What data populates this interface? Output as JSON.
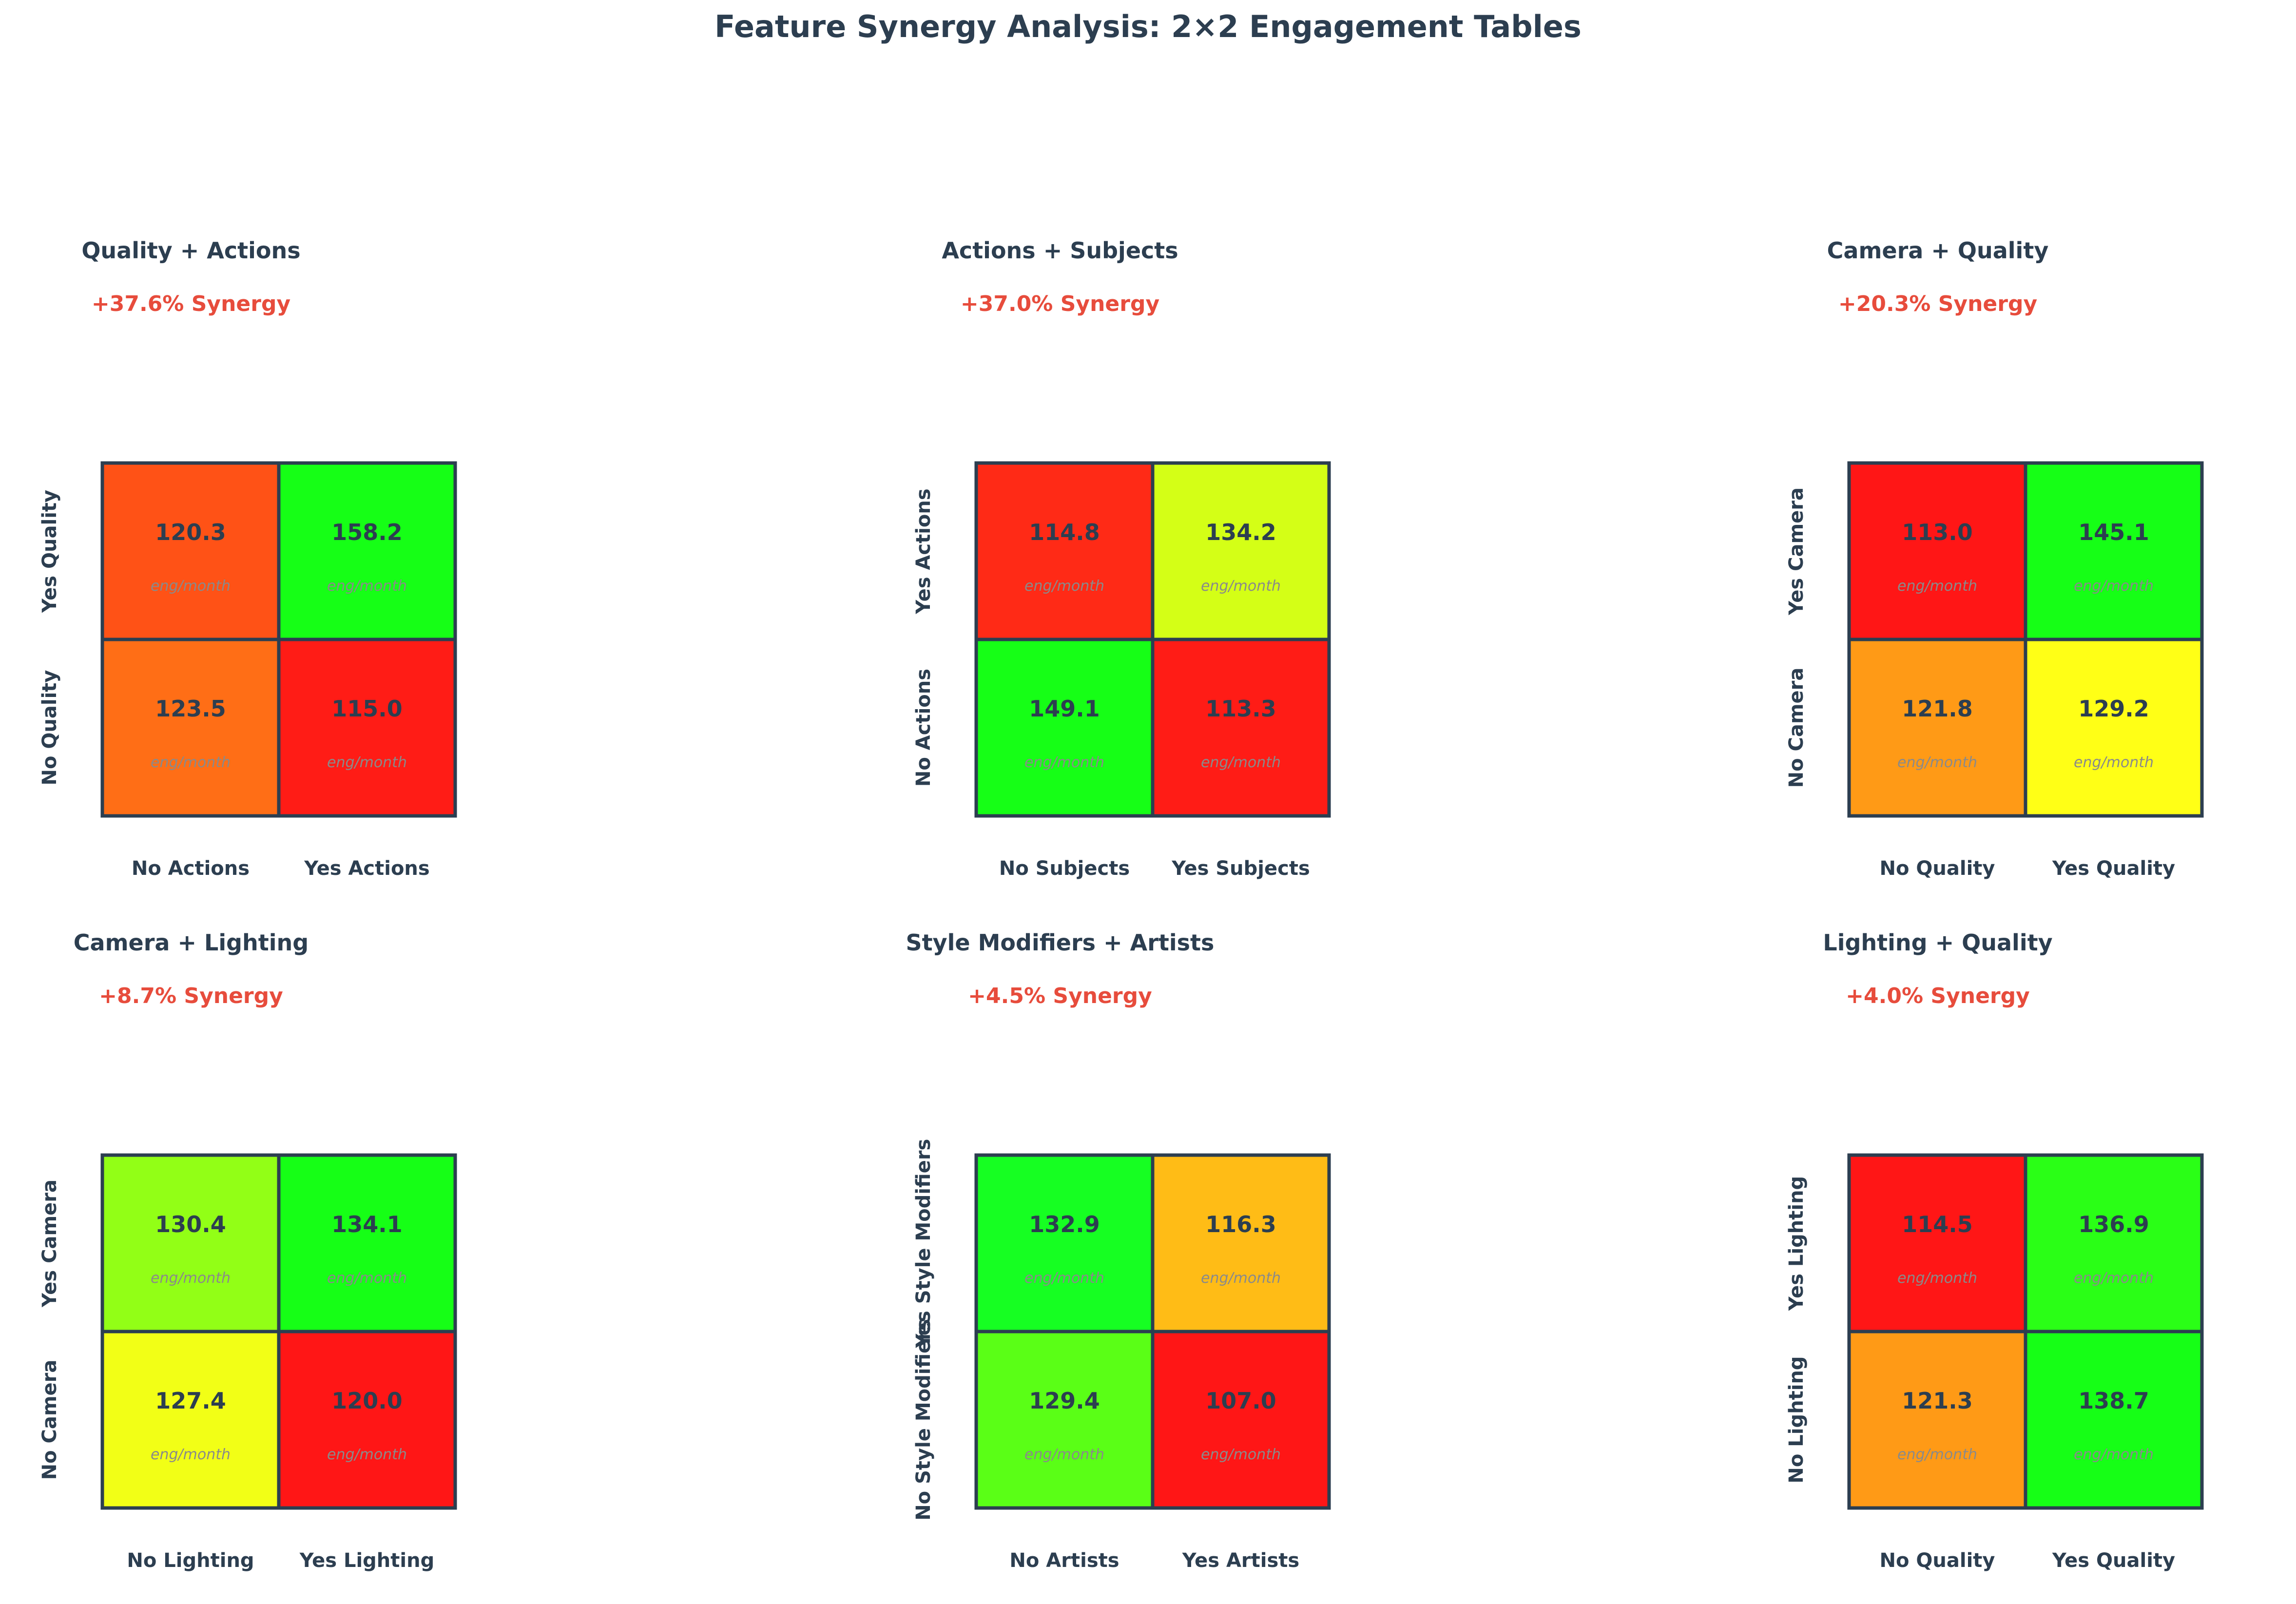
{
  "title": "Feature Synergy Analysis: 2×2 Engagement Tables",
  "unit_label": "eng/month",
  "chart_data": [
    {
      "type": "heatmap",
      "title": "Quality + Actions",
      "synergy": "+37.6% Synergy",
      "x_labels": [
        "No Actions",
        "Yes Actions"
      ],
      "y_labels": [
        "Yes Quality",
        "No Quality"
      ],
      "values": [
        [
          120.3,
          158.2
        ],
        [
          123.5,
          115.0
        ]
      ],
      "colors": [
        [
          "#ff5216",
          "#16ff16"
        ],
        [
          "#ff6e16",
          "#ff1c16"
        ]
      ]
    },
    {
      "type": "heatmap",
      "title": "Actions + Subjects",
      "synergy": "+37.0% Synergy",
      "x_labels": [
        "No Subjects",
        "Yes Subjects"
      ],
      "y_labels": [
        "Yes Actions",
        "No Actions"
      ],
      "values": [
        [
          114.8,
          134.2
        ],
        [
          149.1,
          113.3
        ]
      ],
      "colors": [
        [
          "#ff2a16",
          "#d4ff16"
        ],
        [
          "#16ff16",
          "#ff1c16"
        ]
      ]
    },
    {
      "type": "heatmap",
      "title": "Camera + Quality",
      "synergy": "+20.3% Synergy",
      "x_labels": [
        "No Quality",
        "Yes Quality"
      ],
      "y_labels": [
        "Yes Camera",
        "No Camera"
      ],
      "values": [
        [
          113.0,
          145.1
        ],
        [
          121.8,
          129.2
        ]
      ],
      "colors": [
        [
          "#ff1616",
          "#16ff16"
        ],
        [
          "#ff9a16",
          "#ffff16"
        ]
      ]
    },
    {
      "type": "heatmap",
      "title": "Camera + Lighting",
      "synergy": "+8.7% Synergy",
      "x_labels": [
        "No Lighting",
        "Yes Lighting"
      ],
      "y_labels": [
        "Yes Camera",
        "No Camera"
      ],
      "values": [
        [
          130.4,
          134.1
        ],
        [
          127.4,
          120.0
        ]
      ],
      "colors": [
        [
          "#92ff16",
          "#16ff16"
        ],
        [
          "#f2ff16",
          "#ff1616"
        ]
      ]
    },
    {
      "type": "heatmap",
      "title": "Style Modifiers + Artists",
      "synergy": "+4.5% Synergy",
      "x_labels": [
        "No Artists",
        "Yes Artists"
      ],
      "y_labels": [
        "Yes Style Modifiers",
        "No Style Modifiers"
      ],
      "values": [
        [
          132.9,
          116.3
        ],
        [
          129.4,
          107.0
        ]
      ],
      "colors": [
        [
          "#16ff22",
          "#ffbc16"
        ],
        [
          "#5aff16",
          "#ff1616"
        ]
      ]
    },
    {
      "type": "heatmap",
      "title": "Lighting + Quality",
      "synergy": "+4.0% Synergy",
      "x_labels": [
        "No Quality",
        "Yes Quality"
      ],
      "y_labels": [
        "Yes Lighting",
        "No Lighting"
      ],
      "values": [
        [
          114.5,
          136.9
        ],
        [
          121.3,
          138.7
        ]
      ],
      "colors": [
        [
          "#ff1616",
          "#2aff16"
        ],
        [
          "#ff9a16",
          "#16ff16"
        ]
      ]
    }
  ]
}
